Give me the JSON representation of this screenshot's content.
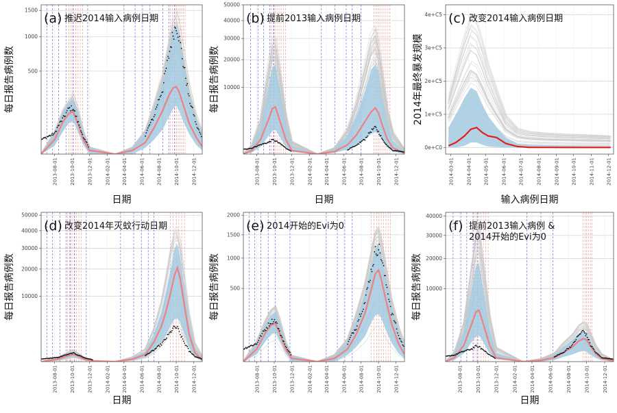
{
  "figure_title": "",
  "colors": {
    "axis": "#555555",
    "grid": "#d4d4d4",
    "bg_sim": "#c8c8c8",
    "band": "#a3cbe0",
    "median": "#f08080",
    "median_c": "#e0201b",
    "observed": "#111111",
    "vline_blue": "#6b6bd6",
    "vline_red": "#d9534f"
  },
  "chart_data": [
    {
      "id": "a",
      "type": "line",
      "letter": "(a)",
      "title": "推迟2014输入病例日期",
      "xlabel": "日期",
      "ylabel": "每日报告病例数",
      "scale": "sqrt",
      "ylim": [
        0,
        1620
      ],
      "yticks": [
        500,
        1000,
        1500
      ],
      "xticks": [
        "2013-08-01",
        "2013-10-01",
        "2013-12-01",
        "2014-02-01",
        "2014-04-01",
        "2014-06-01",
        "2014-08-01",
        "2014-10-01",
        "2014-12-01"
      ],
      "x_range": [
        "2013-06-15",
        "2014-12-31"
      ],
      "dates": [
        "2013-06-15",
        "2013-08-01",
        "2013-09-01",
        "2013-09-20",
        "2013-10-05",
        "2013-10-20",
        "2013-11-10",
        "2013-12-01",
        "2014-03-01",
        "2014-05-01",
        "2014-06-15",
        "2014-07-15",
        "2014-08-15",
        "2014-09-05",
        "2014-09-20",
        "2014-10-01",
        "2014-10-10",
        "2014-10-25",
        "2014-11-15",
        "2014-12-10",
        "2014-12-31"
      ],
      "sim_upper": [
        0,
        40,
        160,
        230,
        280,
        170,
        40,
        4,
        0,
        4,
        45,
        200,
        520,
        1000,
        1450,
        1580,
        1380,
        900,
        380,
        120,
        40
      ],
      "band_upper": [
        0,
        30,
        130,
        190,
        220,
        140,
        32,
        3,
        0,
        3,
        32,
        140,
        380,
        760,
        1100,
        1200,
        1020,
        650,
        260,
        80,
        25
      ],
      "band_lower": [
        0,
        5,
        40,
        70,
        80,
        40,
        6,
        0,
        0,
        0,
        3,
        15,
        45,
        100,
        150,
        170,
        140,
        80,
        30,
        6,
        1
      ],
      "median": [
        0,
        15,
        80,
        120,
        130,
        75,
        15,
        1,
        0,
        1,
        10,
        50,
        140,
        250,
        320,
        330,
        290,
        180,
        70,
        20,
        4
      ],
      "observed": [
        15,
        30,
        95,
        150,
        155,
        80,
        18,
        2,
        null,
        null,
        25,
        100,
        310,
        700,
        1050,
        1230,
        1030,
        600,
        220,
        60,
        15
      ],
      "vlines_blue": [
        "2013-07-05",
        "2013-07-25",
        "2013-08-15",
        "2013-09-10",
        "2013-10-05",
        "2013-11-25",
        "2014-04-01",
        "2014-05-10",
        "2014-06-05",
        "2014-07-01",
        "2014-08-15",
        "2014-09-05",
        "2014-09-25"
      ],
      "vlines_red": [
        "2013-09-20",
        "2013-09-28",
        "2013-10-06",
        "2013-10-14",
        "2013-10-22",
        "2013-10-30",
        "2013-11-07",
        "2014-09-10",
        "2014-09-18",
        "2014-09-26",
        "2014-10-02",
        "2014-10-08",
        "2014-10-14",
        "2014-10-20",
        "2014-10-26",
        "2014-11-01"
      ]
    },
    {
      "id": "b",
      "type": "line",
      "letter": "(b)",
      "title": "提前2013输入病例日期",
      "xlabel": "日期",
      "ylabel": "每日报告病例数",
      "scale": "sqrt",
      "ylim": [
        0,
        50000
      ],
      "yticks": [
        10000,
        20000,
        30000,
        40000,
        50000
      ],
      "xticks": [
        "2013-08-01",
        "2013-10-01",
        "2013-12-01",
        "2014-02-01",
        "2014-04-01",
        "2014-06-01",
        "2014-08-01",
        "2014-10-01",
        "2014-12-01"
      ],
      "x_range": [
        "2013-06-15",
        "2014-12-31"
      ],
      "dates": [
        "2013-06-15",
        "2013-07-15",
        "2013-08-15",
        "2013-09-10",
        "2013-09-25",
        "2013-10-05",
        "2013-10-20",
        "2013-11-10",
        "2013-12-01",
        "2014-03-01",
        "2014-05-01",
        "2014-06-15",
        "2014-07-15",
        "2014-08-15",
        "2014-09-05",
        "2014-09-20",
        "2014-10-01",
        "2014-10-15",
        "2014-11-01",
        "2014-11-20",
        "2014-12-31"
      ],
      "sim_upper": [
        0,
        200,
        3000,
        18000,
        30000,
        32000,
        18000,
        4000,
        400,
        0,
        100,
        1500,
        6500,
        19000,
        33000,
        38000,
        30000,
        16000,
        5000,
        1200,
        50
      ],
      "band_upper": [
        0,
        120,
        1600,
        9500,
        17000,
        18000,
        9800,
        2000,
        150,
        0,
        60,
        800,
        3200,
        9000,
        16000,
        18000,
        15000,
        7000,
        2200,
        400,
        20
      ],
      "band_lower": [
        0,
        5,
        120,
        700,
        1200,
        1300,
        700,
        120,
        10,
        0,
        3,
        50,
        200,
        500,
        900,
        1100,
        900,
        400,
        100,
        15,
        0
      ],
      "median": [
        0,
        30,
        500,
        2600,
        4700,
        5000,
        2600,
        500,
        30,
        0,
        15,
        200,
        800,
        2400,
        4000,
        4800,
        3800,
        1800,
        500,
        90,
        2
      ],
      "observed": [
        50,
        80,
        200,
        300,
        450,
        400,
        250,
        80,
        10,
        null,
        null,
        40,
        150,
        500,
        1200,
        1600,
        1100,
        450,
        150,
        30,
        10
      ],
      "vlines_blue": [
        "2013-07-10",
        "2013-08-05",
        "2013-08-25",
        "2013-09-15",
        "2013-09-30",
        "2014-03-15",
        "2014-05-01",
        "2014-06-10",
        "2014-07-01",
        "2014-08-01"
      ],
      "vlines_red": [
        "2013-09-20",
        "2013-09-27",
        "2013-10-04",
        "2013-10-11",
        "2013-10-18",
        "2013-10-25",
        "2013-11-02",
        "2013-11-10",
        "2014-09-15",
        "2014-09-22",
        "2014-09-29",
        "2014-10-06",
        "2014-10-13",
        "2014-10-20",
        "2014-10-27",
        "2014-11-03",
        "2014-11-10"
      ]
    },
    {
      "id": "c",
      "type": "line",
      "letter": "(c)",
      "title": "改变2014输入病例日期",
      "xlabel": "输入病例日期",
      "ylabel": "2014年最终暴发规模",
      "scale": "linear",
      "ylim": [
        -20000,
        430000
      ],
      "yticks": [
        0,
        100000,
        200000,
        300000,
        400000
      ],
      "ytick_labels": [
        "0e+C0",
        "1e+C5",
        "2e+C5",
        "3e+C5",
        "4e+C5"
      ],
      "xticks": [
        "2014-03-01",
        "2014-04-01",
        "2014-05-01",
        "2014-06-01",
        "2014-07-01",
        "2014-08-01",
        "2014-09-01",
        "2014-10-01",
        "2014-11-01",
        "2014-12-01"
      ],
      "x_range": [
        "2014-02-20",
        "2014-12-10"
      ],
      "dates": [
        "2014-02-25",
        "2014-03-10",
        "2014-03-25",
        "2014-04-05",
        "2014-04-15",
        "2014-04-25",
        "2014-05-05",
        "2014-05-20",
        "2014-06-05",
        "2014-06-25",
        "2014-07-15",
        "2014-08-15",
        "2014-09-15",
        "2014-10-15",
        "2014-11-15",
        "2014-12-05"
      ],
      "sim_upper": [
        160000,
        250000,
        350000,
        410000,
        390000,
        330000,
        260000,
        180000,
        100000,
        60000,
        50000,
        45000,
        42000,
        40000,
        38000,
        36000
      ],
      "band_upper": [
        60000,
        100000,
        150000,
        180000,
        170000,
        130000,
        95000,
        60000,
        30000,
        12000,
        8000,
        6000,
        5000,
        4000,
        3500,
        3000
      ],
      "band_lower": [
        0,
        0,
        5000,
        15000,
        15000,
        8000,
        3000,
        1000,
        0,
        0,
        0,
        0,
        0,
        0,
        0,
        0
      ],
      "median": [
        5000,
        15000,
        35000,
        55000,
        60000,
        45000,
        35000,
        30000,
        12000,
        3000,
        500,
        200,
        100,
        50,
        20,
        0
      ],
      "observed": []
    },
    {
      "id": "d",
      "type": "line",
      "letter": "(d)",
      "title": "改变2014年灭蚊行动日期",
      "xlabel": "日期",
      "ylabel": "每日报告病例数",
      "scale": "sqrt",
      "ylim": [
        0,
        52000
      ],
      "yticks": [
        10000,
        20000,
        30000,
        40000,
        50000
      ],
      "xticks": [
        "2013-08-01",
        "2013-10-01",
        "2013-12-01",
        "2014-02-01",
        "2014-04-01",
        "2014-06-01",
        "2014-08-01",
        "2014-10-01",
        "2014-12-01"
      ],
      "x_range": [
        "2013-06-15",
        "2014-12-31"
      ],
      "dates": [
        "2013-06-15",
        "2013-08-15",
        "2013-09-20",
        "2013-10-05",
        "2013-10-20",
        "2013-11-15",
        "2013-12-15",
        "2014-03-01",
        "2014-05-01",
        "2014-06-15",
        "2014-07-15",
        "2014-08-10",
        "2014-08-25",
        "2014-09-10",
        "2014-09-25",
        "2014-10-05",
        "2014-10-15",
        "2014-10-30",
        "2014-11-15",
        "2014-12-05",
        "2014-12-31"
      ],
      "sim_upper": [
        0,
        60,
        250,
        350,
        200,
        40,
        3,
        0,
        60,
        400,
        2800,
        9000,
        17000,
        30000,
        42000,
        43000,
        36000,
        18000,
        6000,
        900,
        80
      ],
      "band_upper": [
        0,
        40,
        180,
        240,
        150,
        25,
        2,
        0,
        40,
        250,
        1800,
        5800,
        11000,
        19000,
        30000,
        32000,
        26000,
        12000,
        3500,
        450,
        30
      ],
      "band_lower": [
        0,
        5,
        40,
        60,
        35,
        5,
        0,
        0,
        5,
        50,
        300,
        900,
        1600,
        3000,
        4200,
        4400,
        3600,
        1800,
        500,
        60,
        0
      ],
      "median": [
        0,
        15,
        90,
        120,
        80,
        12,
        1,
        0,
        15,
        120,
        900,
        2900,
        5600,
        10500,
        17500,
        20500,
        16000,
        7000,
        1800,
        200,
        5
      ],
      "observed": [
        15,
        40,
        130,
        175,
        110,
        30,
        5,
        null,
        null,
        80,
        300,
        700,
        1200,
        2000,
        2800,
        2600,
        1700,
        800,
        250,
        60,
        15
      ],
      "vlines_blue": [
        "2013-07-05",
        "2013-07-25",
        "2013-08-20",
        "2013-09-10",
        "2013-09-25",
        "2013-10-10",
        "2013-11-20",
        "2014-03-20",
        "2014-05-05",
        "2014-06-01",
        "2014-06-25",
        "2014-07-15"
      ],
      "vlines_red": [
        "2013-09-15",
        "2013-09-23",
        "2013-10-01",
        "2013-10-09",
        "2013-10-17",
        "2013-10-25",
        "2013-11-02",
        "2014-09-10",
        "2014-09-20",
        "2014-10-01",
        "2014-10-10",
        "2014-10-20",
        "2014-10-30"
      ]
    },
    {
      "id": "e",
      "type": "line",
      "letter": "(e)",
      "title": "2014开始的Evi为0",
      "xlabel": "",
      "ylabel": "每日报告病例数",
      "scale": "sqrt",
      "ylim": [
        0,
        2080
      ],
      "yticks": [
        500,
        1000,
        1500,
        2000
      ],
      "xticks": [
        "2013-08-01",
        "2013-10-01",
        "2013-12-01",
        "2014-02-01",
        "2014-04-01",
        "2014-06-01",
        "2014-08-01",
        "2014-10-01",
        "2014-12-01"
      ],
      "x_range": [
        "2013-06-15",
        "2014-12-31"
      ],
      "dates": [
        "2013-06-15",
        "2013-08-01",
        "2013-09-01",
        "2013-09-20",
        "2013-10-05",
        "2013-10-20",
        "2013-11-10",
        "2013-12-01",
        "2014-03-01",
        "2014-05-01",
        "2014-06-15",
        "2014-07-15",
        "2014-08-15",
        "2014-09-05",
        "2014-09-20",
        "2014-10-01",
        "2014-10-10",
        "2014-10-25",
        "2014-11-15",
        "2014-12-10",
        "2014-12-31"
      ],
      "sim_upper": [
        0,
        40,
        170,
        260,
        300,
        180,
        40,
        4,
        0,
        5,
        50,
        220,
        600,
        1150,
        1650,
        1750,
        1500,
        950,
        400,
        120,
        35
      ],
      "band_upper": [
        0,
        30,
        130,
        200,
        230,
        140,
        30,
        3,
        0,
        3,
        35,
        160,
        440,
        850,
        1200,
        1300,
        1100,
        700,
        280,
        80,
        20
      ],
      "band_lower": [
        0,
        5,
        40,
        70,
        80,
        40,
        6,
        0,
        0,
        0,
        4,
        20,
        60,
        140,
        200,
        210,
        180,
        100,
        35,
        6,
        1
      ],
      "median": [
        0,
        15,
        80,
        125,
        135,
        75,
        15,
        1,
        0,
        1,
        15,
        70,
        220,
        480,
        720,
        780,
        650,
        380,
        140,
        30,
        5
      ],
      "observed": [
        15,
        30,
        100,
        150,
        160,
        80,
        20,
        2,
        null,
        null,
        28,
        110,
        330,
        750,
        1120,
        1230,
        1050,
        620,
        230,
        60,
        15
      ],
      "vlines_blue": [
        "2013-07-05",
        "2013-07-25",
        "2013-08-15",
        "2013-09-10",
        "2013-10-05",
        "2013-11-25",
        "2014-04-01",
        "2014-05-10",
        "2014-06-05",
        "2014-07-01"
      ],
      "vlines_red": [
        "2014-09-05",
        "2014-09-15",
        "2014-09-25",
        "2014-10-03",
        "2014-10-11",
        "2014-10-19",
        "2014-10-27",
        "2014-11-04",
        "2014-11-12"
      ]
    },
    {
      "id": "f",
      "type": "line",
      "letter": "(f)",
      "title": "提前2013输入病例 &",
      "title2": "2014开始的Evi为0",
      "xlabel": "日期",
      "ylabel": "每日报告病例数",
      "scale": "sqrt",
      "ylim": [
        0,
        42000
      ],
      "yticks": [
        10000,
        20000,
        30000,
        40000
      ],
      "xticks": [
        "2013-08-01",
        "2013-10-01",
        "2013-12-01",
        "2014-02-01",
        "2014-04-01",
        "2014-06-01",
        "2014-08-01",
        "2014-10-01",
        "2014-12-01"
      ],
      "x_range": [
        "2013-06-15",
        "2014-12-31"
      ],
      "dates": [
        "2013-06-15",
        "2013-07-15",
        "2013-08-15",
        "2013-09-10",
        "2013-09-25",
        "2013-10-05",
        "2013-10-20",
        "2013-11-10",
        "2013-12-01",
        "2014-03-01",
        "2014-05-01",
        "2014-06-15",
        "2014-07-15",
        "2014-08-15",
        "2014-09-05",
        "2014-09-20",
        "2014-10-01",
        "2014-10-15",
        "2014-11-01",
        "2014-11-20",
        "2014-12-31"
      ],
      "sim_upper": [
        0,
        200,
        3000,
        18000,
        32000,
        34000,
        18000,
        4000,
        400,
        0,
        20,
        150,
        700,
        1500,
        2600,
        3100,
        2800,
        1500,
        500,
        120,
        5
      ],
      "band_upper": [
        0,
        120,
        1600,
        9500,
        17000,
        18000,
        9800,
        2000,
        150,
        0,
        10,
        80,
        400,
        900,
        1500,
        1800,
        1600,
        800,
        250,
        50,
        2
      ],
      "band_lower": [
        0,
        5,
        120,
        700,
        1200,
        1300,
        700,
        120,
        10,
        0,
        0,
        5,
        40,
        100,
        180,
        220,
        200,
        100,
        30,
        5,
        0
      ],
      "median": [
        0,
        30,
        500,
        2600,
        4700,
        5000,
        2600,
        500,
        30,
        0,
        3,
        30,
        150,
        420,
        800,
        1000,
        900,
        450,
        120,
        20,
        1
      ],
      "observed": [
        50,
        80,
        200,
        300,
        450,
        400,
        250,
        80,
        10,
        null,
        null,
        40,
        150,
        500,
        1300,
        1800,
        1300,
        500,
        150,
        30,
        10
      ],
      "vlines_blue": [
        "2013-07-10",
        "2013-08-05",
        "2013-08-25",
        "2013-09-15",
        "2013-09-30",
        "2014-03-15",
        "2014-05-01",
        "2014-06-10"
      ],
      "vlines_red": [
        "2013-09-18",
        "2013-09-26",
        "2013-10-04",
        "2013-10-12",
        "2013-10-20",
        "2013-10-28",
        "2013-11-05",
        "2014-09-20",
        "2014-09-26",
        "2014-10-02",
        "2014-10-08",
        "2014-10-14",
        "2014-10-20"
      ]
    }
  ]
}
